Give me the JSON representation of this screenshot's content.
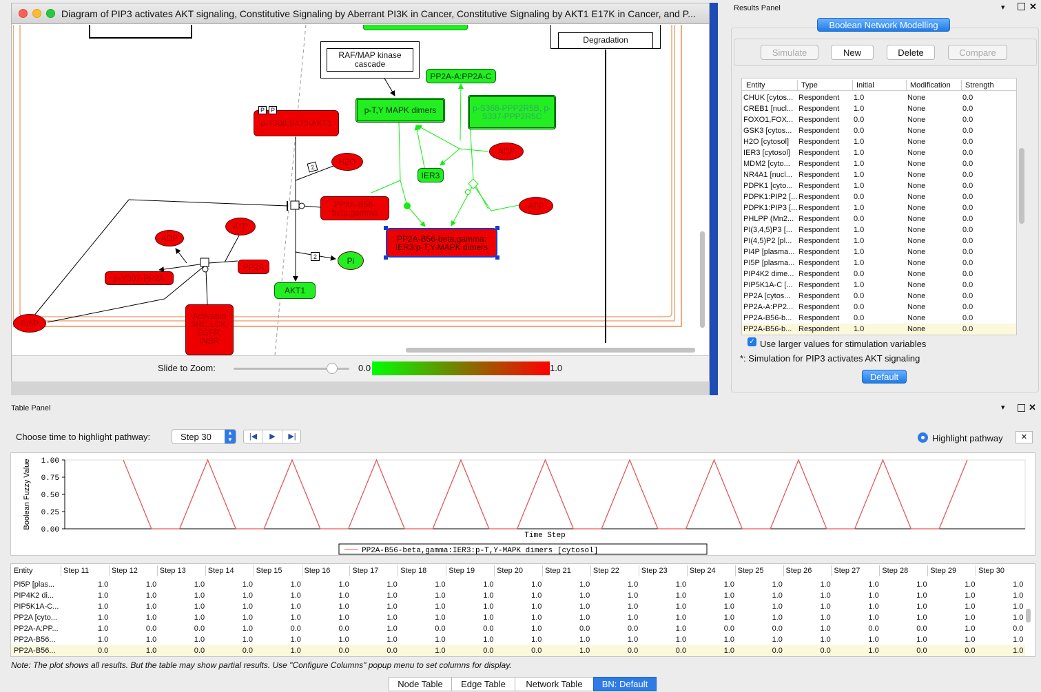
{
  "window": {
    "title": "Diagram of PIP3 activates AKT signaling, Constitutive Signaling by Aberrant PI3K in Cancer, Constitutive Signaling by AKT1 E17K in Cancer,  and P..."
  },
  "diagram": {
    "nodes": {
      "degradation": "Degradation",
      "raf_map": "RAF/MAP kinase cascade",
      "pp2a_a_c": "PP2A-A:PP2A-C",
      "mapk_dimers": "p-T,Y MAPK dimers",
      "ppp2r5": "p-S368-PPP2R5B, p-S337-PPP2R5C",
      "akt1_phos": "p-T308,S473-AKT1",
      "h2o": "H2O",
      "adp_right": "ADP",
      "ier3": "IER3",
      "pp2a_b56": "PP2A-B56-beta,gamma",
      "atp_right": "ATP",
      "complex_selected": "PP2A-B56-beta,gamma: IER3:p-T,Y-MAPK dimers",
      "atp_left": "ATP",
      "adp_left": "ADP",
      "pp2a": "PP2A",
      "py307": "p-Y307-PP2A",
      "pi": "Pi",
      "akt1": "AKT1",
      "activated_src": "Activated SRC,LCK, EGFR, INSR",
      "pi5p": "PI5P"
    },
    "stoich": "2",
    "phospho_marker": "P"
  },
  "zoom": {
    "label": "Slide to Zoom:",
    "scale_min": "0.0",
    "scale_max": "1.0",
    "slider_level": 0.85
  },
  "results_panel": {
    "title": "Results Panel",
    "tab": "Boolean Network Modelling",
    "buttons": {
      "simulate": "Simulate",
      "new": "New",
      "delete": "Delete",
      "compare": "Compare"
    },
    "columns": [
      "Entity",
      "Type",
      "Initial",
      "Modification",
      "Strength"
    ],
    "rows": [
      [
        "CHUK [cytos...",
        "Respondent",
        "1.0",
        "None",
        "0.0"
      ],
      [
        "CREB1 [nucl...",
        "Respondent",
        "1.0",
        "None",
        "0.0"
      ],
      [
        "FOXO1,FOX...",
        "Respondent",
        "0.0",
        "None",
        "0.0"
      ],
      [
        "GSK3 [cytos...",
        "Respondent",
        "0.0",
        "None",
        "0.0"
      ],
      [
        "H2O [cytosol]",
        "Respondent",
        "1.0",
        "None",
        "0.0"
      ],
      [
        "IER3 [cytosol]",
        "Respondent",
        "1.0",
        "None",
        "0.0"
      ],
      [
        "MDM2 [cyto...",
        "Respondent",
        "1.0",
        "None",
        "0.0"
      ],
      [
        "NR4A1 [nucl...",
        "Respondent",
        "1.0",
        "None",
        "0.0"
      ],
      [
        "PDPK1 [cyto...",
        "Respondent",
        "1.0",
        "None",
        "0.0"
      ],
      [
        "PDPK1:PIP2 [...",
        "Respondent",
        "0.0",
        "None",
        "0.0"
      ],
      [
        "PDPK1:PIP3 [...",
        "Respondent",
        "1.0",
        "None",
        "0.0"
      ],
      [
        "PHLPP (Mn2...",
        "Respondent",
        "0.0",
        "None",
        "0.0"
      ],
      [
        "PI(3,4,5)P3 [...",
        "Respondent",
        "1.0",
        "None",
        "0.0"
      ],
      [
        "PI(4,5)P2 [pl...",
        "Respondent",
        "1.0",
        "None",
        "0.0"
      ],
      [
        "PI4P [plasma...",
        "Respondent",
        "1.0",
        "None",
        "0.0"
      ],
      [
        "PI5P [plasma...",
        "Respondent",
        "1.0",
        "None",
        "0.0"
      ],
      [
        "PIP4K2 dime...",
        "Respondent",
        "0.0",
        "None",
        "0.0"
      ],
      [
        "PIP5K1A-C [...",
        "Respondent",
        "1.0",
        "None",
        "0.0"
      ],
      [
        "PP2A [cytos...",
        "Respondent",
        "0.0",
        "None",
        "0.0"
      ],
      [
        "PP2A-A:PP2...",
        "Respondent",
        "0.0",
        "None",
        "0.0"
      ],
      [
        "PP2A-B56-b...",
        "Respondent",
        "0.0",
        "None",
        "0.0"
      ],
      [
        "PP2A-B56-b...",
        "Respondent",
        "1.0",
        "None",
        "0.0"
      ]
    ],
    "checkbox_label": "Use larger values for stimulation variables",
    "note": "*: Simulation for PIP3 activates AKT signaling",
    "default_button": "Default"
  },
  "table_panel": {
    "title": "Table Panel",
    "choose_label": "Choose time to highlight pathway:",
    "step_value": "Step 30",
    "highlight_label": "Highlight pathway",
    "close_glyph": "✕",
    "note": "Note: The plot shows all results. But the table may show partial results. Use \"Configure Columns\" popup menu to set columns for display.",
    "tabs": [
      "Node Table",
      "Edge Table",
      "Network Table",
      "BN: Default"
    ]
  },
  "chart_data": {
    "type": "line",
    "title": "",
    "xlabel": "Time Step",
    "ylabel": "Boolean Fuzzy Value",
    "y_ticks": [
      "1.00",
      "0.75",
      "0.50",
      "0.25",
      "0.00"
    ],
    "ylim": [
      0,
      1
    ],
    "xlim": [
      0,
      30
    ],
    "grid": false,
    "legend_position": "bottom",
    "series": [
      {
        "name": "PP2A-B56-beta,gamma:IER3:p-T,Y-MAPK dimers [cytosol]",
        "color": "#e05a5a",
        "x": [
          0,
          1,
          2,
          3,
          4,
          5,
          6,
          7,
          8,
          9,
          10,
          11,
          12,
          13,
          14,
          15,
          16,
          17,
          18,
          19,
          20,
          21,
          22,
          23,
          24,
          25,
          26,
          27,
          28,
          29,
          30
        ],
        "values": [
          1,
          0,
          0,
          1,
          0,
          0,
          1,
          0,
          0,
          1,
          0,
          0,
          1,
          0,
          0,
          1,
          0,
          0,
          1,
          0,
          0,
          1,
          0,
          0,
          1,
          0,
          0,
          1,
          0,
          0,
          1
        ]
      }
    ]
  },
  "data_table": {
    "columns": [
      "Entity",
      "Step 11",
      "Step 12",
      "Step 13",
      "Step 14",
      "Step 15",
      "Step 16",
      "Step 17",
      "Step 18",
      "Step 19",
      "Step 20",
      "Step 21",
      "Step 22",
      "Step 23",
      "Step 24",
      "Step 25",
      "Step 26",
      "Step 27",
      "Step 28",
      "Step 29",
      "Step 30"
    ],
    "rows": [
      [
        "PI5P [plas...",
        "1.0",
        "1.0",
        "1.0",
        "1.0",
        "1.0",
        "1.0",
        "1.0",
        "1.0",
        "1.0",
        "1.0",
        "1.0",
        "1.0",
        "1.0",
        "1.0",
        "1.0",
        "1.0",
        "1.0",
        "1.0",
        "1.0",
        "1.0"
      ],
      [
        "PIP4K2 di...",
        "1.0",
        "1.0",
        "1.0",
        "1.0",
        "1.0",
        "1.0",
        "1.0",
        "1.0",
        "1.0",
        "1.0",
        "1.0",
        "1.0",
        "1.0",
        "1.0",
        "1.0",
        "1.0",
        "1.0",
        "1.0",
        "1.0",
        "1.0"
      ],
      [
        "PIP5K1A-C...",
        "1.0",
        "1.0",
        "1.0",
        "1.0",
        "1.0",
        "1.0",
        "1.0",
        "1.0",
        "1.0",
        "1.0",
        "1.0",
        "1.0",
        "1.0",
        "1.0",
        "1.0",
        "1.0",
        "1.0",
        "1.0",
        "1.0",
        "1.0"
      ],
      [
        "PP2A [cyto...",
        "1.0",
        "1.0",
        "1.0",
        "1.0",
        "1.0",
        "1.0",
        "1.0",
        "1.0",
        "1.0",
        "1.0",
        "1.0",
        "1.0",
        "1.0",
        "1.0",
        "1.0",
        "1.0",
        "1.0",
        "1.0",
        "1.0",
        "1.0"
      ],
      [
        "PP2A-A:PP...",
        "1.0",
        "0.0",
        "0.0",
        "1.0",
        "0.0",
        "0.0",
        "1.0",
        "0.0",
        "0.0",
        "1.0",
        "0.0",
        "0.0",
        "1.0",
        "0.0",
        "0.0",
        "1.0",
        "0.0",
        "0.0",
        "1.0",
        "0.0"
      ],
      [
        "PP2A-B56...",
        "1.0",
        "1.0",
        "1.0",
        "1.0",
        "1.0",
        "1.0",
        "1.0",
        "1.0",
        "1.0",
        "1.0",
        "1.0",
        "1.0",
        "1.0",
        "1.0",
        "1.0",
        "1.0",
        "1.0",
        "1.0",
        "1.0",
        "1.0"
      ],
      [
        "PP2A-B56...",
        "0.0",
        "1.0",
        "0.0",
        "0.0",
        "1.0",
        "0.0",
        "0.0",
        "1.0",
        "0.0",
        "0.0",
        "1.0",
        "0.0",
        "0.0",
        "1.0",
        "0.0",
        "0.0",
        "1.0",
        "0.0",
        "0.0",
        "1.0"
      ]
    ]
  }
}
